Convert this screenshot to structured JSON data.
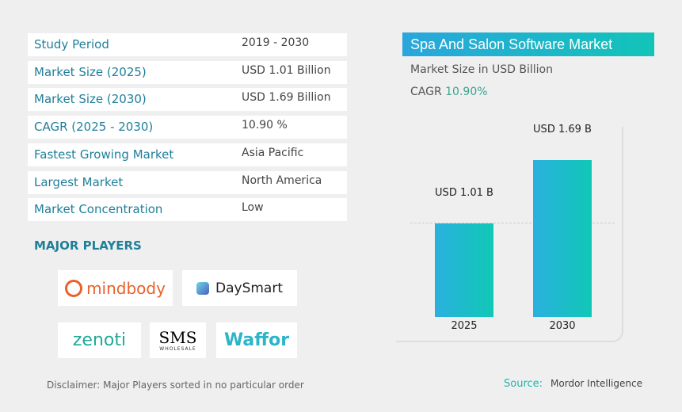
{
  "table": [
    {
      "key": "Study Period",
      "value": "2019 - 2030"
    },
    {
      "key": "Market Size (2025)",
      "value": "USD 1.01 Billion"
    },
    {
      "key": "Market Size (2030)",
      "value": "USD 1.69 Billion"
    },
    {
      "key": "CAGR (2025 - 2030)",
      "value": "10.90 %"
    },
    {
      "key": "Fastest Growing Market",
      "value": "Asia Pacific"
    },
    {
      "key": "Largest Market",
      "value": "North America"
    },
    {
      "key": "Market Concentration",
      "value": "Low"
    }
  ],
  "major_players_title": "MAJOR PLAYERS",
  "players": [
    "mindbody",
    "DaySmart",
    "zenoti",
    "SMS",
    "Waffor"
  ],
  "sms_sub": "WHOLESALE",
  "chart_data": {
    "type": "bar",
    "title": "Spa And Salon Software Market",
    "subtitle": "Market Size in USD Billion",
    "cagr_label": "CAGR",
    "cagr_value": "10.90%",
    "categories": [
      "2025",
      "2030"
    ],
    "values": [
      1.01,
      1.69
    ],
    "data_labels": [
      "USD 1.01 B",
      "USD 1.69 B"
    ],
    "colors": {
      "start": "#2ab0de",
      "end": "#10c8b6"
    }
  },
  "footer": {
    "disclaimer": "Disclaimer:  Major Players sorted in no particular order",
    "source_label": "Source:",
    "source_value": "Mordor Intelligence"
  }
}
